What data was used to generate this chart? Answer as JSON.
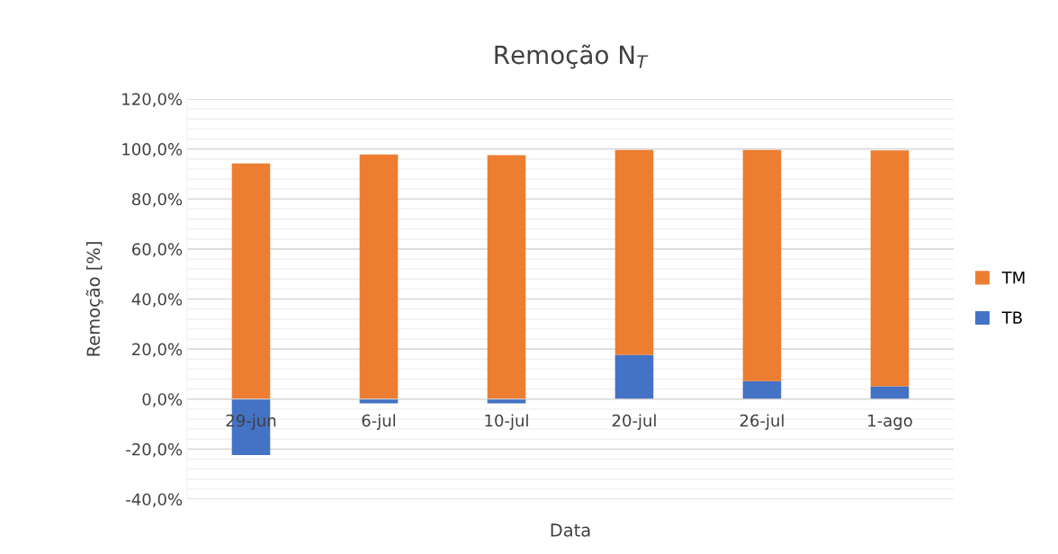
{
  "chart_data": {
    "type": "bar",
    "title": "Remoção N$_{T}$",
    "xlabel": "Data",
    "ylabel": "Remoção [%]",
    "categories": [
      "29-jun",
      "6-jul",
      "10-jul",
      "20-jul",
      "26-jul",
      "1-ago"
    ],
    "stacked": true,
    "series": [
      {
        "name": "TB",
        "color": "#4472c4",
        "values": [
          -22.4,
          -1.7,
          -1.7,
          17.7,
          7.2,
          5.1
        ]
      },
      {
        "name": "TM",
        "color": "#ed7d31",
        "values": [
          94.2,
          97.8,
          97.5,
          81.9,
          92.4,
          94.3
        ]
      }
    ],
    "ylim": [
      -40,
      120
    ],
    "yticks": [
      {
        "value": -40,
        "label": "-40,0%"
      },
      {
        "value": -36,
        "label": null
      },
      {
        "value": -32,
        "label": null
      },
      {
        "value": -28,
        "label": null
      },
      {
        "value": -24,
        "label": null
      },
      {
        "value": -20,
        "label": "-20,0%"
      },
      {
        "value": -16,
        "label": null
      },
      {
        "value": -12,
        "label": null
      },
      {
        "value": -8,
        "label": null
      },
      {
        "value": -4,
        "label": null
      },
      {
        "value": 0,
        "label": "0,0%"
      },
      {
        "value": 4,
        "label": null
      },
      {
        "value": 8,
        "label": null
      },
      {
        "value": 12,
        "label": null
      },
      {
        "value": 16,
        "label": null
      },
      {
        "value": 20,
        "label": "20,0%"
      },
      {
        "value": 24,
        "label": null
      },
      {
        "value": 28,
        "label": null
      },
      {
        "value": 32,
        "label": null
      },
      {
        "value": 36,
        "label": null
      },
      {
        "value": 40,
        "label": "40,0%"
      },
      {
        "value": 44,
        "label": null
      },
      {
        "value": 48,
        "label": null
      },
      {
        "value": 52,
        "label": null
      },
      {
        "value": 56,
        "label": null
      },
      {
        "value": 60,
        "label": "60,0%"
      },
      {
        "value": 64,
        "label": null
      },
      {
        "value": 68,
        "label": null
      },
      {
        "value": 72,
        "label": null
      },
      {
        "value": 76,
        "label": null
      },
      {
        "value": 80,
        "label": "80,0%"
      },
      {
        "value": 84,
        "label": null
      },
      {
        "value": 88,
        "label": null
      },
      {
        "value": 92,
        "label": null
      },
      {
        "value": 96,
        "label": null
      },
      {
        "value": 100,
        "label": "100,0%"
      },
      {
        "value": 104,
        "label": null
      },
      {
        "value": 108,
        "label": null
      },
      {
        "value": 112,
        "label": null
      },
      {
        "value": 116,
        "label": null
      },
      {
        "value": 120,
        "label": "120,0%"
      }
    ],
    "grid": "y",
    "legend": "right"
  }
}
